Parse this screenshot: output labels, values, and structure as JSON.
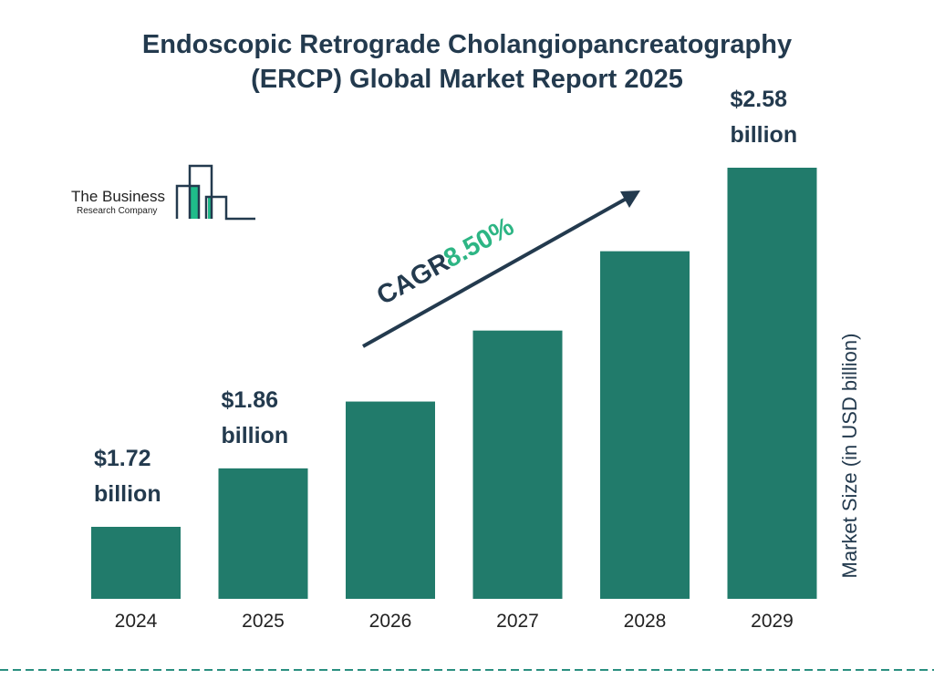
{
  "title_line1": "Endoscopic Retrograde Cholangiopancreatography",
  "title_line2": "(ERCP) Global Market Report 2025",
  "logo": {
    "line1": "The Business",
    "line2": "Research Company"
  },
  "colors": {
    "bar": "#217b6b",
    "text": "#233a4e",
    "accent": "#2db584",
    "logo_green": "#1fbc8a"
  },
  "cagr": {
    "label": "CAGR",
    "value": "8.50%"
  },
  "chart_data": {
    "type": "bar",
    "title": "Endoscopic Retrograde Cholangiopancreatography (ERCP) Global Market Report 2025",
    "categories": [
      "2024",
      "2025",
      "2026",
      "2027",
      "2028",
      "2029"
    ],
    "values": [
      1.72,
      1.86,
      2.02,
      2.19,
      2.38,
      2.58
    ],
    "data_labels": [
      {
        "index": 0,
        "value": "$1.72",
        "unit": "billion"
      },
      {
        "index": 1,
        "value": "$1.86",
        "unit": "billion"
      },
      {
        "index": 5,
        "value": "$2.58",
        "unit": "billion"
      }
    ],
    "ylabel": "Market Size (in USD billion)",
    "xlabel": "",
    "grid": false
  }
}
